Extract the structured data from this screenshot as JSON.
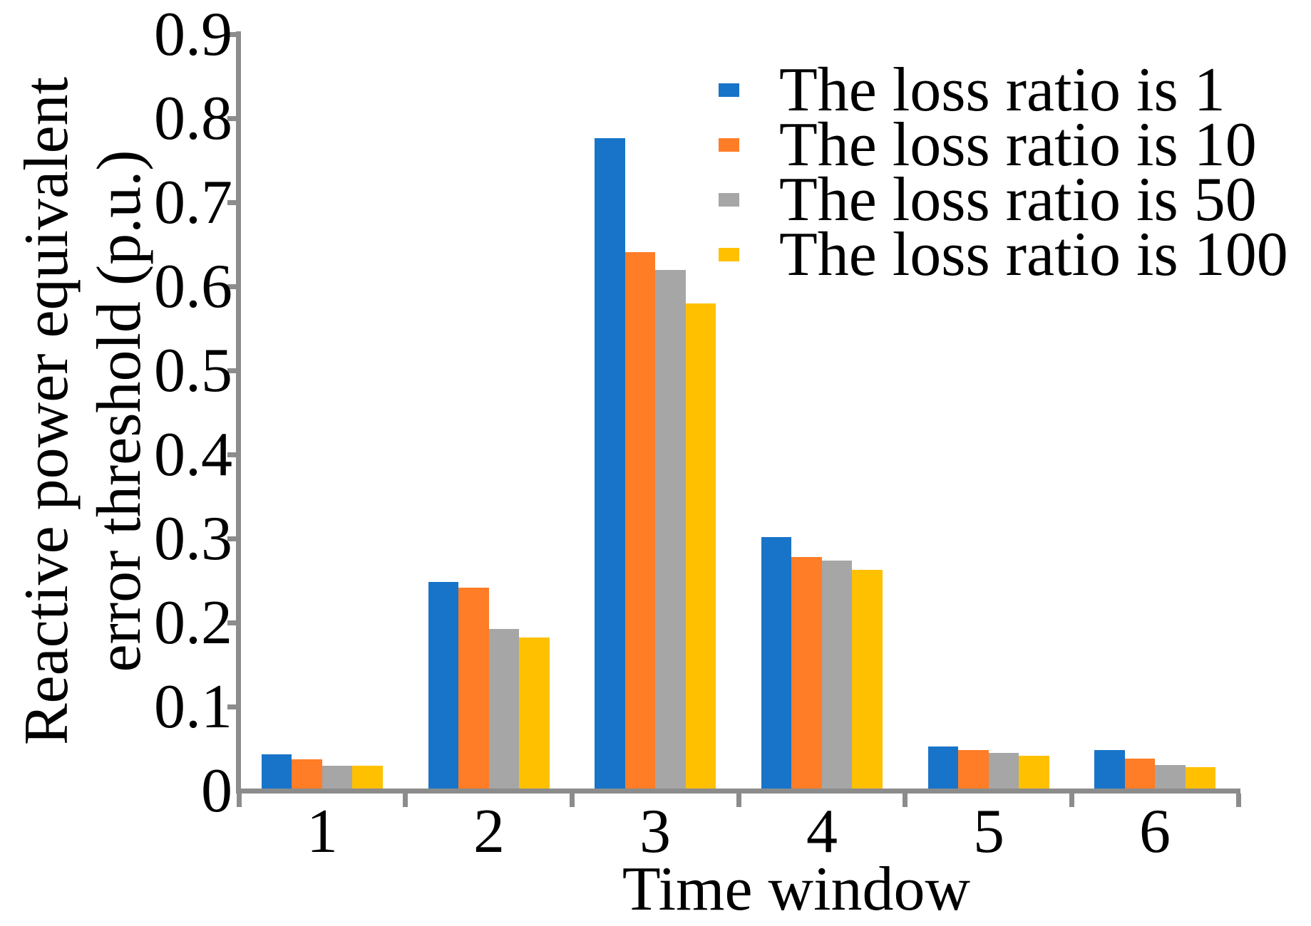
{
  "figure": {
    "background": "#FFFFFF",
    "axis_color": "#8C8C8C",
    "text_color": "#000000"
  },
  "chart_data": {
    "type": "bar",
    "title": "",
    "xlabel": "Time window",
    "ylabel_lines": [
      "Reactive power equivalent",
      "error threshold (p.u.)"
    ],
    "categories": [
      "1",
      "2",
      "3",
      "4",
      "5",
      "6"
    ],
    "series": [
      {
        "name": "The loss ratio is 1",
        "color": "#1874C8",
        "values": [
          0.041,
          0.246,
          0.774,
          0.299,
          0.05,
          0.046
        ]
      },
      {
        "name": "The loss ratio is 10",
        "color": "#FF7D26",
        "values": [
          0.035,
          0.239,
          0.638,
          0.275,
          0.046,
          0.036
        ]
      },
      {
        "name": "The loss ratio is 50",
        "color": "#A6A6A6",
        "values": [
          0.027,
          0.19,
          0.617,
          0.271,
          0.042,
          0.028
        ]
      },
      {
        "name": "The loss ratio is 100",
        "color": "#FFC000",
        "values": [
          0.027,
          0.18,
          0.577,
          0.26,
          0.039,
          0.025
        ]
      }
    ],
    "ylim": [
      0,
      0.9
    ],
    "y_tick_labels": [
      "0",
      "0.1",
      "0.2",
      "0.3",
      "0.4",
      "0.5",
      "0.6",
      "0.7",
      "0.8",
      "0.9"
    ],
    "grid": "off",
    "legend_position": "top-right"
  }
}
